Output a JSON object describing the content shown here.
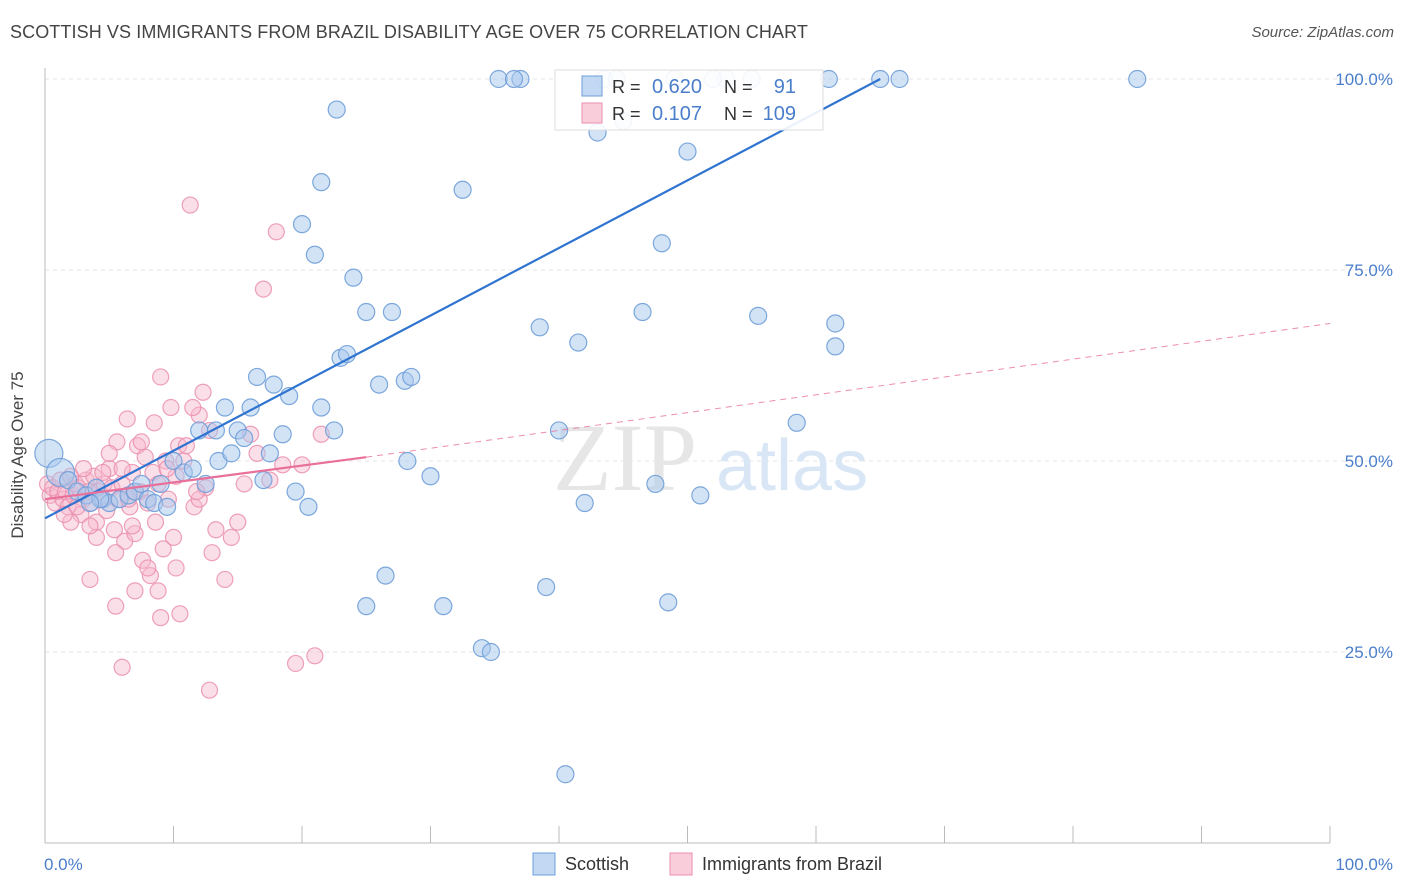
{
  "title": "SCOTTISH VS IMMIGRANTS FROM BRAZIL DISABILITY AGE OVER 75 CORRELATION CHART",
  "source": "Source: ZipAtlas.com",
  "watermark": {
    "zip": "ZIP",
    "atlas": "atlas"
  },
  "colors": {
    "blue_fill": "#a8c8ee",
    "blue_stroke": "#6f9fd8",
    "blue_line": "#2f74d0",
    "pink_fill": "#f6b8cb",
    "pink_stroke": "#ea8fae",
    "pink_line": "#e8709a",
    "axis_text": "#4a7ecb",
    "grid": "#e4e4e4"
  },
  "legend_top": [
    {
      "r_label": "R =",
      "r_value": "0.620",
      "n_label": "N =",
      "n_value": "91",
      "color": "blue"
    },
    {
      "r_label": "R =",
      "r_value": "0.107",
      "n_label": "N =",
      "n_value": "109",
      "color": "pink"
    }
  ],
  "legend_bottom": [
    {
      "label": "Scottish",
      "color": "blue"
    },
    {
      "label": "Immigrants from Brazil",
      "color": "pink"
    }
  ],
  "chart_data": {
    "type": "scatter",
    "title": "SCOTTISH VS IMMIGRANTS FROM BRAZIL DISABILITY AGE OVER 75 CORRELATION CHART",
    "xlabel": "",
    "ylabel": "Disability Age Over 75",
    "xlim": [
      0,
      100
    ],
    "ylim": [
      0,
      100
    ],
    "x_tick_labels": [
      "0.0%",
      "100.0%"
    ],
    "y_tick_labels": [
      "25.0%",
      "50.0%",
      "75.0%",
      "100.0%"
    ],
    "y_ticks": [
      25,
      50,
      75,
      100
    ],
    "grid": true,
    "legend_position": "top-center",
    "series": [
      {
        "name": "Scottish",
        "color": "blue",
        "R": 0.62,
        "N": 91,
        "trend": {
          "x": [
            0,
            65
          ],
          "y": [
            42.5,
            100
          ],
          "style": "solid"
        },
        "points": [
          {
            "x": 0.3,
            "y": 51,
            "big": true
          },
          {
            "x": 1.2,
            "y": 48.5,
            "big": true
          },
          {
            "x": 1.8,
            "y": 47.5
          },
          {
            "x": 2.5,
            "y": 46
          },
          {
            "x": 3.2,
            "y": 45.5
          },
          {
            "x": 4,
            "y": 46.5
          },
          {
            "x": 4.5,
            "y": 45
          },
          {
            "x": 5,
            "y": 44.5
          },
          {
            "x": 5.8,
            "y": 45
          },
          {
            "x": 6.5,
            "y": 45.5
          },
          {
            "x": 7,
            "y": 46
          },
          {
            "x": 7.5,
            "y": 47
          },
          {
            "x": 8,
            "y": 45
          },
          {
            "x": 8.5,
            "y": 44.5
          },
          {
            "x": 9,
            "y": 47
          },
          {
            "x": 10,
            "y": 50
          },
          {
            "x": 10.8,
            "y": 48.5
          },
          {
            "x": 11.5,
            "y": 49
          },
          {
            "x": 12,
            "y": 54
          },
          {
            "x": 12.5,
            "y": 47
          },
          {
            "x": 13.5,
            "y": 50
          },
          {
            "x": 13.3,
            "y": 54
          },
          {
            "x": 14,
            "y": 57
          },
          {
            "x": 14.5,
            "y": 51
          },
          {
            "x": 15,
            "y": 54
          },
          {
            "x": 15.5,
            "y": 53
          },
          {
            "x": 16,
            "y": 57
          },
          {
            "x": 16.5,
            "y": 61
          },
          {
            "x": 17,
            "y": 47.5
          },
          {
            "x": 17.5,
            "y": 51
          },
          {
            "x": 17.8,
            "y": 60
          },
          {
            "x": 18.5,
            "y": 53.5
          },
          {
            "x": 19,
            "y": 58.5
          },
          {
            "x": 19.5,
            "y": 46
          },
          {
            "x": 20,
            "y": 81
          },
          {
            "x": 20.5,
            "y": 44
          },
          {
            "x": 21,
            "y": 77
          },
          {
            "x": 21.5,
            "y": 57
          },
          {
            "x": 22.5,
            "y": 54
          },
          {
            "x": 23,
            "y": 63.5
          },
          {
            "x": 23.5,
            "y": 64
          },
          {
            "x": 25,
            "y": 31
          },
          {
            "x": 26.5,
            "y": 35
          },
          {
            "x": 21.5,
            "y": 86.5
          },
          {
            "x": 22.7,
            "y": 96
          },
          {
            "x": 24,
            "y": 74
          },
          {
            "x": 25,
            "y": 69.5
          },
          {
            "x": 26,
            "y": 60
          },
          {
            "x": 27,
            "y": 69.5
          },
          {
            "x": 28,
            "y": 60.5
          },
          {
            "x": 28.5,
            "y": 61
          },
          {
            "x": 28.2,
            "y": 50
          },
          {
            "x": 30,
            "y": 48
          },
          {
            "x": 31,
            "y": 31
          },
          {
            "x": 32.5,
            "y": 85.5
          },
          {
            "x": 34,
            "y": 25.5
          },
          {
            "x": 34.7,
            "y": 25
          },
          {
            "x": 35.3,
            "y": 100
          },
          {
            "x": 37,
            "y": 100
          },
          {
            "x": 38.5,
            "y": 67.5
          },
          {
            "x": 39,
            "y": 33.5
          },
          {
            "x": 40.5,
            "y": 9
          },
          {
            "x": 40,
            "y": 54
          },
          {
            "x": 41.5,
            "y": 65.5
          },
          {
            "x": 42,
            "y": 44.5
          },
          {
            "x": 43,
            "y": 93
          },
          {
            "x": 43.5,
            "y": 100
          },
          {
            "x": 44.5,
            "y": 100
          },
          {
            "x": 45,
            "y": 94.5
          },
          {
            "x": 46.5,
            "y": 69.5
          },
          {
            "x": 47.5,
            "y": 47
          },
          {
            "x": 48,
            "y": 78.5
          },
          {
            "x": 48.5,
            "y": 31.5
          },
          {
            "x": 49,
            "y": 100
          },
          {
            "x": 50,
            "y": 90.5
          },
          {
            "x": 51,
            "y": 45.5
          },
          {
            "x": 53,
            "y": 100
          },
          {
            "x": 55.5,
            "y": 69
          },
          {
            "x": 58.5,
            "y": 55
          },
          {
            "x": 61,
            "y": 100
          },
          {
            "x": 61.5,
            "y": 68
          },
          {
            "x": 61.5,
            "y": 65
          },
          {
            "x": 65,
            "y": 100
          },
          {
            "x": 66.5,
            "y": 100
          },
          {
            "x": 85,
            "y": 100
          },
          {
            "x": 36.5,
            "y": 100
          },
          {
            "x": 52,
            "y": 100
          },
          {
            "x": 55,
            "y": 100
          },
          {
            "x": 4.3,
            "y": 45
          },
          {
            "x": 3.5,
            "y": 44.5
          },
          {
            "x": 9.5,
            "y": 44
          }
        ]
      },
      {
        "name": "Immigrants from Brazil",
        "color": "pink",
        "R": 0.107,
        "N": 109,
        "trend_solid": {
          "x": [
            0,
            25
          ],
          "y": [
            45,
            50.5
          ]
        },
        "trend_dashed": {
          "x": [
            25,
            100
          ],
          "y": [
            50.5,
            68
          ]
        },
        "points": [
          {
            "x": 0.2,
            "y": 47
          },
          {
            "x": 0.4,
            "y": 45.5
          },
          {
            "x": 0.6,
            "y": 46.5
          },
          {
            "x": 0.8,
            "y": 44.5
          },
          {
            "x": 1,
            "y": 46
          },
          {
            "x": 1.2,
            "y": 47.5
          },
          {
            "x": 1.4,
            "y": 45
          },
          {
            "x": 1.6,
            "y": 46
          },
          {
            "x": 1.8,
            "y": 44
          },
          {
            "x": 2,
            "y": 48
          },
          {
            "x": 2.2,
            "y": 45.5
          },
          {
            "x": 2.4,
            "y": 47
          },
          {
            "x": 2.6,
            "y": 46.5
          },
          {
            "x": 2.8,
            "y": 43
          },
          {
            "x": 3,
            "y": 45
          },
          {
            "x": 3.2,
            "y": 47.5
          },
          {
            "x": 3.4,
            "y": 46
          },
          {
            "x": 3.6,
            "y": 44.5
          },
          {
            "x": 3.8,
            "y": 48
          },
          {
            "x": 4,
            "y": 42
          },
          {
            "x": 4.2,
            "y": 46
          },
          {
            "x": 4.4,
            "y": 45
          },
          {
            "x": 4.6,
            "y": 47
          },
          {
            "x": 4.8,
            "y": 43.5
          },
          {
            "x": 5,
            "y": 49
          },
          {
            "x": 5.2,
            "y": 46.5
          },
          {
            "x": 5.4,
            "y": 41
          },
          {
            "x": 5.6,
            "y": 52.5
          },
          {
            "x": 5.8,
            "y": 45
          },
          {
            "x": 6,
            "y": 47
          },
          {
            "x": 6.2,
            "y": 39.5
          },
          {
            "x": 6.4,
            "y": 55.5
          },
          {
            "x": 6.6,
            "y": 44
          },
          {
            "x": 6.8,
            "y": 48.5
          },
          {
            "x": 7,
            "y": 40.5
          },
          {
            "x": 7.2,
            "y": 52
          },
          {
            "x": 7.4,
            "y": 46
          },
          {
            "x": 7.6,
            "y": 37
          },
          {
            "x": 7.8,
            "y": 50.5
          },
          {
            "x": 8,
            "y": 44.5
          },
          {
            "x": 8.2,
            "y": 35
          },
          {
            "x": 8.4,
            "y": 48.5
          },
          {
            "x": 8.6,
            "y": 42
          },
          {
            "x": 8.8,
            "y": 47
          },
          {
            "x": 9,
            "y": 61
          },
          {
            "x": 9.2,
            "y": 38.5
          },
          {
            "x": 9.4,
            "y": 50
          },
          {
            "x": 9.6,
            "y": 45
          },
          {
            "x": 9.8,
            "y": 57
          },
          {
            "x": 10,
            "y": 40
          },
          {
            "x": 10.2,
            "y": 48
          },
          {
            "x": 10.4,
            "y": 52
          },
          {
            "x": 10.8,
            "y": 50
          },
          {
            "x": 11,
            "y": 52
          },
          {
            "x": 11.3,
            "y": 83.5
          },
          {
            "x": 11.6,
            "y": 44
          },
          {
            "x": 12,
            "y": 56
          },
          {
            "x": 12.3,
            "y": 59
          },
          {
            "x": 12.5,
            "y": 46.5
          },
          {
            "x": 12.8,
            "y": 54
          },
          {
            "x": 13,
            "y": 38
          },
          {
            "x": 13.3,
            "y": 41
          },
          {
            "x": 14,
            "y": 34.5
          },
          {
            "x": 14.5,
            "y": 40
          },
          {
            "x": 15,
            "y": 42
          },
          {
            "x": 15.5,
            "y": 47
          },
          {
            "x": 16,
            "y": 53.5
          },
          {
            "x": 16.5,
            "y": 51
          },
          {
            "x": 17,
            "y": 72.5
          },
          {
            "x": 17.5,
            "y": 47.5
          },
          {
            "x": 18,
            "y": 80
          },
          {
            "x": 18.5,
            "y": 49.5
          },
          {
            "x": 19.5,
            "y": 23.5
          },
          {
            "x": 20,
            "y": 49.5
          },
          {
            "x": 21.5,
            "y": 53.5
          },
          {
            "x": 21,
            "y": 24.5
          },
          {
            "x": 6,
            "y": 23
          },
          {
            "x": 9,
            "y": 29.5
          },
          {
            "x": 10.5,
            "y": 30
          },
          {
            "x": 12.8,
            "y": 20
          },
          {
            "x": 7,
            "y": 33
          },
          {
            "x": 8,
            "y": 36
          },
          {
            "x": 3.5,
            "y": 34.5
          },
          {
            "x": 5.5,
            "y": 31
          },
          {
            "x": 2,
            "y": 42
          },
          {
            "x": 4,
            "y": 40
          },
          {
            "x": 6.5,
            "y": 45
          },
          {
            "x": 7.5,
            "y": 52.5
          },
          {
            "x": 3,
            "y": 49
          },
          {
            "x": 5,
            "y": 51
          },
          {
            "x": 8.5,
            "y": 55
          },
          {
            "x": 11.5,
            "y": 57
          },
          {
            "x": 9.5,
            "y": 49
          },
          {
            "x": 12,
            "y": 45
          },
          {
            "x": 7,
            "y": 46
          },
          {
            "x": 6,
            "y": 49
          },
          {
            "x": 1.5,
            "y": 43
          },
          {
            "x": 2.5,
            "y": 44
          },
          {
            "x": 3.5,
            "y": 41.5
          },
          {
            "x": 4.5,
            "y": 48.5
          },
          {
            "x": 5.5,
            "y": 38
          },
          {
            "x": 6.8,
            "y": 41.5
          },
          {
            "x": 8.8,
            "y": 33
          },
          {
            "x": 10.2,
            "y": 36
          },
          {
            "x": 11.8,
            "y": 46
          }
        ]
      }
    ]
  }
}
